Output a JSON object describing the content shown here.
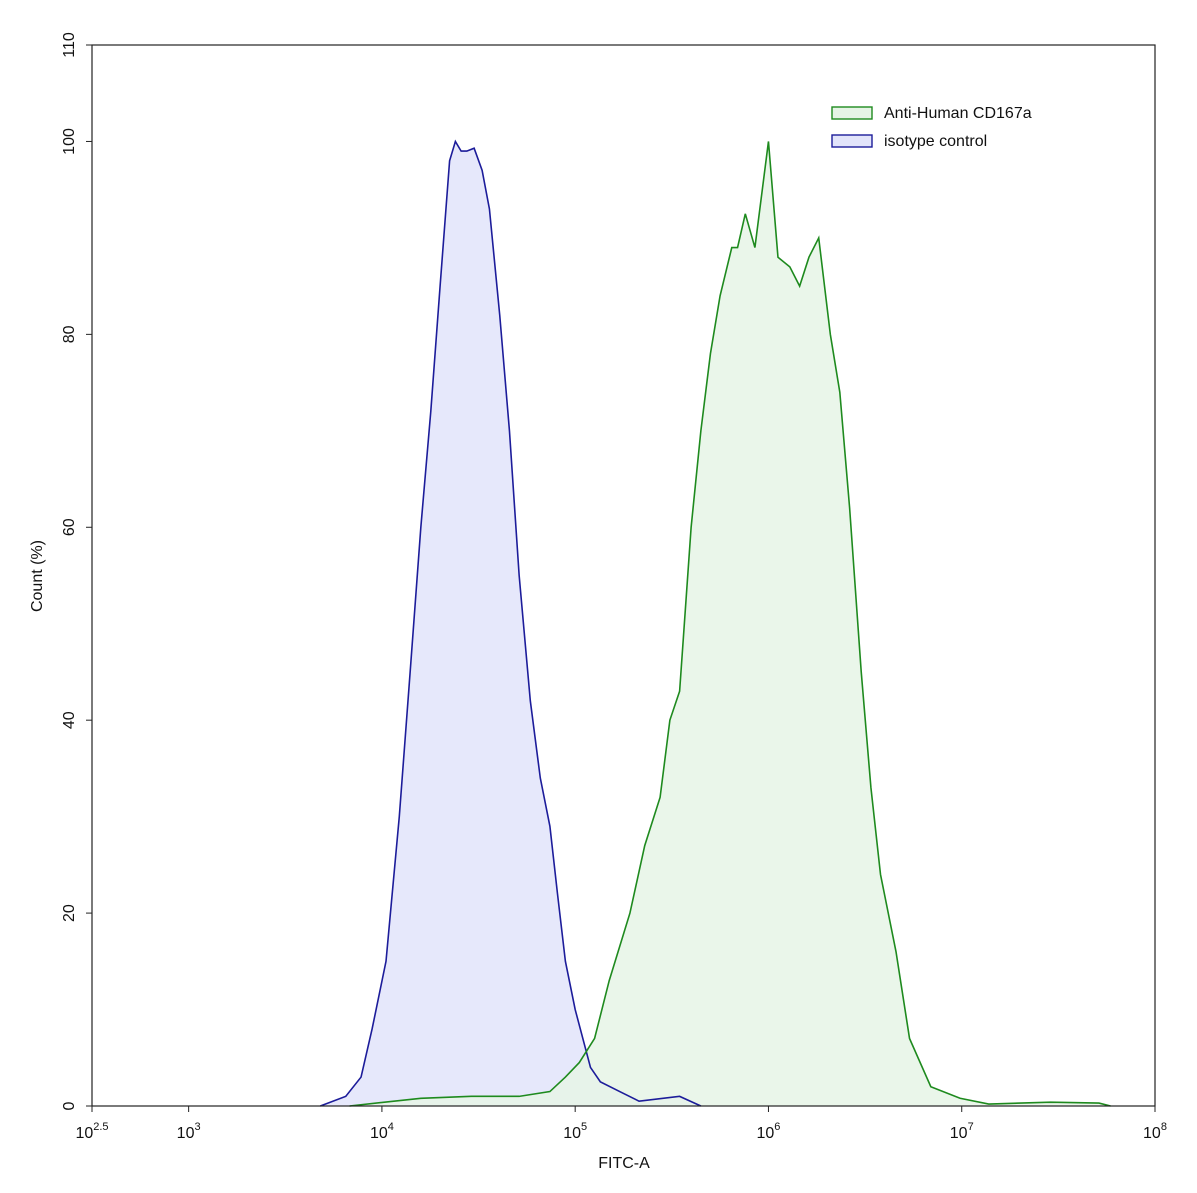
{
  "chart_data": {
    "type": "area",
    "x_label": "FITC-A",
    "y_label": "Count (%)",
    "xscale": "log",
    "xlim": [
      316.2278,
      100000000
    ],
    "xticks": [
      {
        "value": 316.2278,
        "label": "10^2.5"
      },
      {
        "value": 1000,
        "label": "10^3"
      },
      {
        "value": 10000,
        "label": "10^4"
      },
      {
        "value": 100000,
        "label": "10^5"
      },
      {
        "value": 1000000,
        "label": "10^6"
      },
      {
        "value": 10000000,
        "label": "10^7"
      },
      {
        "value": 100000000,
        "label": "10^8"
      }
    ],
    "ylim": [
      0,
      110
    ],
    "yticks": [
      0,
      20,
      40,
      60,
      80,
      100,
      110
    ],
    "legend": "upper right",
    "series": [
      {
        "name": "Anti-Human CD167a",
        "color": "#1e8a1e",
        "fill": "#e6f4e6",
        "x": [
          6800,
          15900,
          29000,
          51300,
          74000,
          89000,
          105000,
          126000,
          150000,
          192000,
          229000,
          275000,
          309000,
          347000,
          398000,
          447000,
          501000,
          562000,
          646000,
          692000,
          759000,
          851000,
          1000000,
          1120000,
          1290000,
          1450000,
          1620000,
          1820000,
          2090000,
          2340000,
          2630000,
          3020000,
          3390000,
          3800000,
          4570000,
          5370000,
          6920000,
          9800000,
          13800000,
          28800000,
          51300000,
          58900000
        ],
        "values": [
          0,
          0.8,
          1,
          1,
          1.5,
          3,
          4.5,
          7,
          13,
          20,
          27,
          32,
          40,
          43,
          60,
          70,
          78,
          84,
          89,
          89,
          92.5,
          89,
          100,
          88,
          87,
          85,
          88,
          90,
          80,
          74,
          62,
          45,
          33,
          24,
          16,
          7,
          2,
          0.8,
          0.2,
          0.4,
          0.3,
          0
        ]
      },
      {
        "name": "isotype control",
        "color": "#1c1c9a",
        "fill": "#e2e4fa",
        "x": [
          4800,
          6500,
          7800,
          8900,
          10500,
          12300,
          14000,
          15900,
          17900,
          20000,
          22400,
          24000,
          25700,
          27500,
          30000,
          33000,
          36000,
          40700,
          45700,
          51300,
          58600,
          66000,
          74000,
          81000,
          89000,
          100000,
          120000,
          135000,
          170000,
          214000,
          347000,
          447000
        ],
        "values": [
          0,
          1,
          3,
          8,
          15,
          30,
          45,
          60,
          72,
          85,
          98,
          100,
          99,
          99,
          99.3,
          97,
          93,
          82,
          70,
          55,
          42,
          34,
          29,
          22,
          15,
          10,
          4,
          2.5,
          1.5,
          0.5,
          1,
          0
        ]
      }
    ]
  }
}
